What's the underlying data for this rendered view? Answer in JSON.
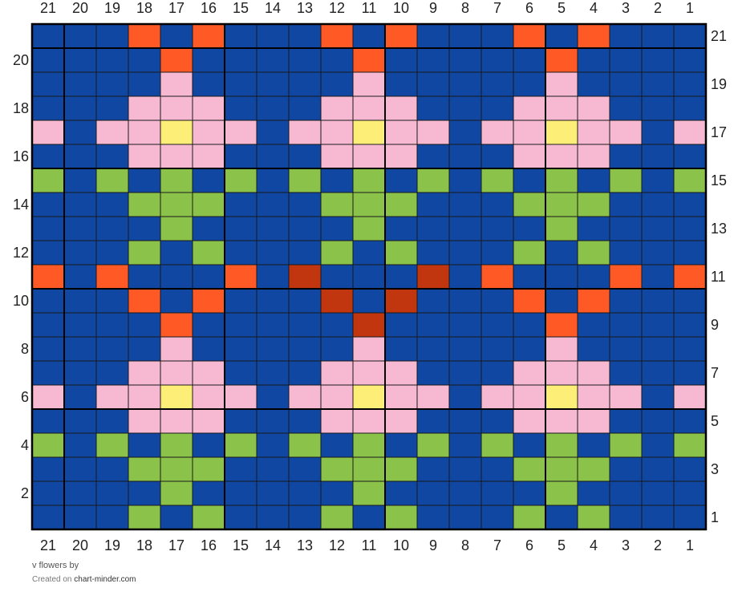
{
  "chart_data": {
    "type": "table",
    "columns": [
      21,
      20,
      19,
      18,
      17,
      16,
      15,
      14,
      13,
      12,
      11,
      10,
      9,
      8,
      7,
      6,
      5,
      4,
      3,
      2,
      1
    ],
    "rows_left": [
      20,
      18,
      16,
      14,
      12,
      10,
      8,
      6,
      4,
      2
    ],
    "rows_right": [
      21,
      19,
      17,
      15,
      13,
      11,
      9,
      7,
      5,
      3,
      1
    ],
    "colors": {
      "B": "#0f47a3",
      "O": "#ff5a26",
      "P": "#f7b8d2",
      "Y": "#fdee78",
      "G": "#8bc34a",
      "R": "#c2360f"
    },
    "grid_lines": "#1a1a1a",
    "block_size": 5,
    "rows": [
      "BBBOBOBBBOBOBBBOBOBBB",
      "BBBBOBBBBBOBBBBBOBBBB",
      "BBBBPBBBBBPBBBBBPBBBB",
      "BBBPPPBBBPPPBBBPPPBBB",
      "PBPPYPPBPPYPPBPPYPPBP",
      "BBBPPPBBBPPPBBBPPPBBB",
      "GBGBGBGBGBGBGBGBGBGBG",
      "BBBGGGBBBGGGBBBGGGBBB",
      "BBBBGBBBBBGBBBBBGBBBB",
      "BBBGBGBBBGBGBBBGBGBBB",
      "OBOBBBOBRBBBRBOBBBOBO",
      "BBBOBOBBBRBRBBBOBOBBB",
      "BBBBOBBBBBRBBBBBOBBBB",
      "BBBBPBBBBBPBBBBBPBBBB",
      "BBBPPPBBBPPPBBBPPPBBB",
      "PBPPYPPBPPYPPBPPYPPBP",
      "BBBPPPBBBPPPBBBPPPBBB",
      "GBGBGBGBGBGBGBGBGBGBG",
      "BBBGGGBBBGGGBBBGGGBBB",
      "BBBBGBBBBBGBBBBBGBBBB",
      "BBBGBGBBBGBGBBBGBGBBB"
    ]
  },
  "footer": {
    "title": "v flowers",
    "by": "by",
    "created_on": "Created on",
    "site": "chart-minder.com"
  }
}
